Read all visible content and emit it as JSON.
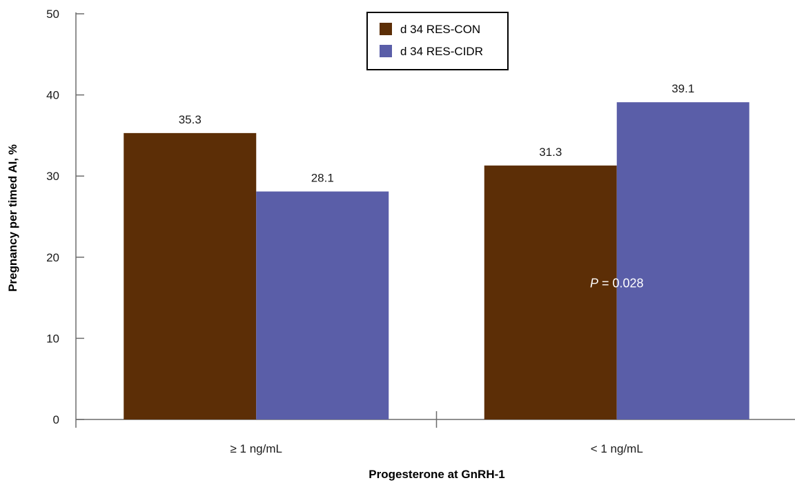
{
  "chart_data": {
    "type": "bar",
    "categories": [
      "≥ 1 ng/mL",
      "< 1 ng/mL"
    ],
    "series": [
      {
        "name": "d 34 RES-CON",
        "values": [
          35.3,
          31.3
        ],
        "color": "#5c2e06"
      },
      {
        "name": "d 34 RES-CIDR",
        "values": [
          28.1,
          39.1
        ],
        "color": "#5a5ea8"
      }
    ],
    "data_labels": [
      [
        "35.3",
        "31.3"
      ],
      [
        "28.1",
        "39.1"
      ]
    ],
    "xlabel": "Progesterone at GnRH-1",
    "ylabel": "Pregnancy per timed AI, %",
    "ylim": [
      0,
      50
    ],
    "yticks": [
      "0",
      "10",
      "20",
      "30",
      "40",
      "50"
    ],
    "ytick_values": [
      0,
      10,
      20,
      30,
      40,
      50
    ],
    "grid": false,
    "legend_position": "top-center",
    "annotation": {
      "italic_part": "P",
      "rest": " = 0.028",
      "category_index": 1,
      "y_value": 16.3
    }
  }
}
